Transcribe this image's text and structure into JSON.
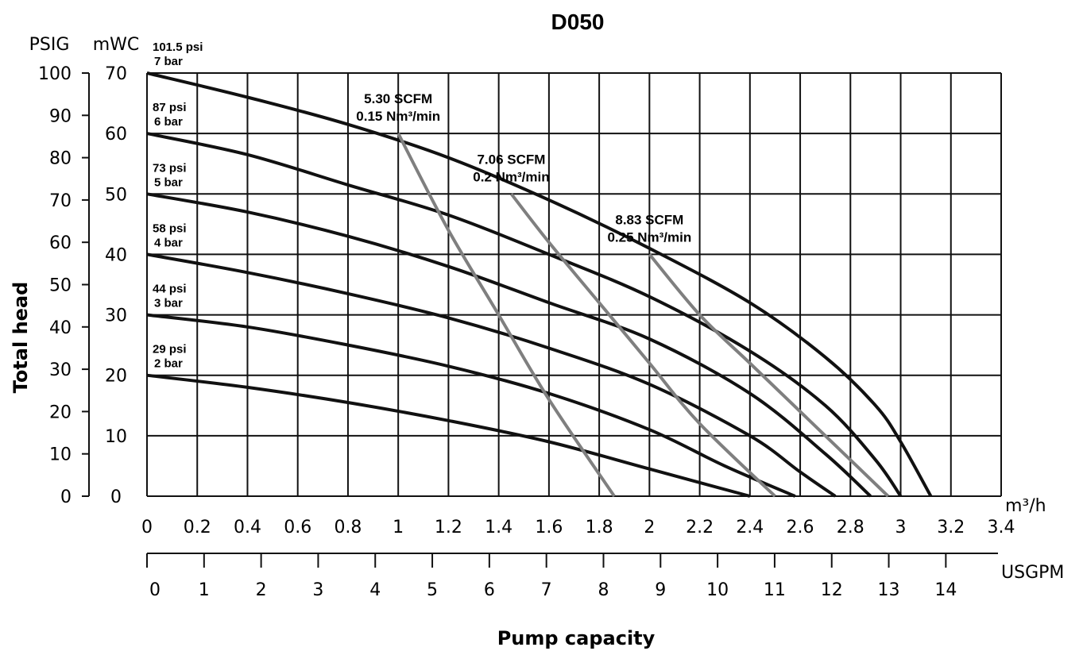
{
  "chart_data": {
    "type": "line",
    "title": "D050",
    "xlabel": "Pump capacity",
    "ylabel": "Total head",
    "x_units": {
      "primary": "m³/h",
      "secondary": "USGPM"
    },
    "y_units": {
      "primary": "mWC",
      "secondary": "PSIG"
    },
    "xlim": [
      0,
      3.4
    ],
    "ylim": [
      0,
      70
    ],
    "x_ticks_m3h": [
      "0",
      "0.2",
      "0.4",
      "0.6",
      "0.8",
      "1",
      "1.2",
      "1.4",
      "1.6",
      "1.8",
      "2",
      "2.2",
      "2.4",
      "2.6",
      "2.8",
      "3",
      "3.2",
      "3.4"
    ],
    "x_ticks_usgpm": [
      "0",
      "1",
      "2",
      "3",
      "4",
      "5",
      "6",
      "7",
      "8",
      "9",
      "10",
      "11",
      "12",
      "13",
      "14"
    ],
    "y_ticks_mwc": [
      "0",
      "10",
      "20",
      "30",
      "40",
      "50",
      "60",
      "70"
    ],
    "y_ticks_psig": [
      "0",
      "10",
      "20",
      "30",
      "40",
      "50",
      "60",
      "70",
      "80",
      "90",
      "100"
    ],
    "grid": true,
    "pressure_series": [
      {
        "name": "101.5 psi",
        "label2": "7 bar",
        "points": [
          [
            0,
            70
          ],
          [
            0.4,
            66
          ],
          [
            0.8,
            61.5
          ],
          [
            1.2,
            56
          ],
          [
            1.6,
            49
          ],
          [
            2.0,
            41
          ],
          [
            2.4,
            32
          ],
          [
            2.7,
            23
          ],
          [
            2.9,
            15
          ],
          [
            3.0,
            9
          ],
          [
            3.12,
            0
          ]
        ]
      },
      {
        "name": "87 psi",
        "label2": "6 bar",
        "points": [
          [
            0,
            60
          ],
          [
            0.4,
            56.5
          ],
          [
            0.8,
            51.5
          ],
          [
            1.2,
            46.5
          ],
          [
            1.6,
            40
          ],
          [
            2.0,
            33
          ],
          [
            2.4,
            24
          ],
          [
            2.7,
            15
          ],
          [
            2.9,
            6
          ],
          [
            3.0,
            0
          ]
        ]
      },
      {
        "name": "73 psi",
        "label2": "5 bar",
        "points": [
          [
            0,
            50
          ],
          [
            0.4,
            47
          ],
          [
            0.8,
            43
          ],
          [
            1.2,
            38
          ],
          [
            1.6,
            32
          ],
          [
            2.0,
            26
          ],
          [
            2.4,
            17
          ],
          [
            2.7,
            7
          ],
          [
            2.88,
            0
          ]
        ]
      },
      {
        "name": "58 psi",
        "label2": "4 bar",
        "points": [
          [
            0,
            40
          ],
          [
            0.4,
            37
          ],
          [
            0.8,
            33.5
          ],
          [
            1.2,
            29.5
          ],
          [
            1.6,
            24.5
          ],
          [
            2.0,
            18.5
          ],
          [
            2.4,
            10
          ],
          [
            2.6,
            4
          ],
          [
            2.74,
            0
          ]
        ]
      },
      {
        "name": "44 psi",
        "label2": "3 bar",
        "points": [
          [
            0,
            30
          ],
          [
            0.4,
            28
          ],
          [
            0.8,
            25
          ],
          [
            1.2,
            21.5
          ],
          [
            1.6,
            17
          ],
          [
            2.0,
            11
          ],
          [
            2.3,
            5
          ],
          [
            2.58,
            0
          ]
        ]
      },
      {
        "name": "29 psi",
        "label2": "2 bar",
        "points": [
          [
            0,
            20
          ],
          [
            0.4,
            18
          ],
          [
            0.8,
            15.5
          ],
          [
            1.2,
            12.5
          ],
          [
            1.6,
            9
          ],
          [
            2.0,
            4.5
          ],
          [
            2.4,
            0
          ]
        ]
      }
    ],
    "air_series": [
      {
        "name": "5.30 SCFM",
        "label2": "0.15 Nm³/min",
        "points": [
          [
            1.0,
            60
          ],
          [
            1.2,
            44
          ],
          [
            1.4,
            30
          ],
          [
            1.6,
            16
          ],
          [
            1.86,
            0
          ]
        ]
      },
      {
        "name": "7.06 SCFM",
        "label2": "0.2 Nm³/min",
        "points": [
          [
            1.45,
            50
          ],
          [
            1.6,
            42
          ],
          [
            1.8,
            32
          ],
          [
            2.0,
            22
          ],
          [
            2.2,
            12
          ],
          [
            2.5,
            0
          ]
        ]
      },
      {
        "name": "8.83 SCFM",
        "label2": "0.25 Nm³/min",
        "points": [
          [
            2.0,
            40
          ],
          [
            2.2,
            30
          ],
          [
            2.4,
            22
          ],
          [
            2.6,
            14
          ],
          [
            2.8,
            6
          ],
          [
            2.95,
            0
          ]
        ]
      }
    ],
    "colors": {
      "pressure": "#111111",
      "air": "#7f7f7f",
      "grid": "#111111"
    }
  }
}
